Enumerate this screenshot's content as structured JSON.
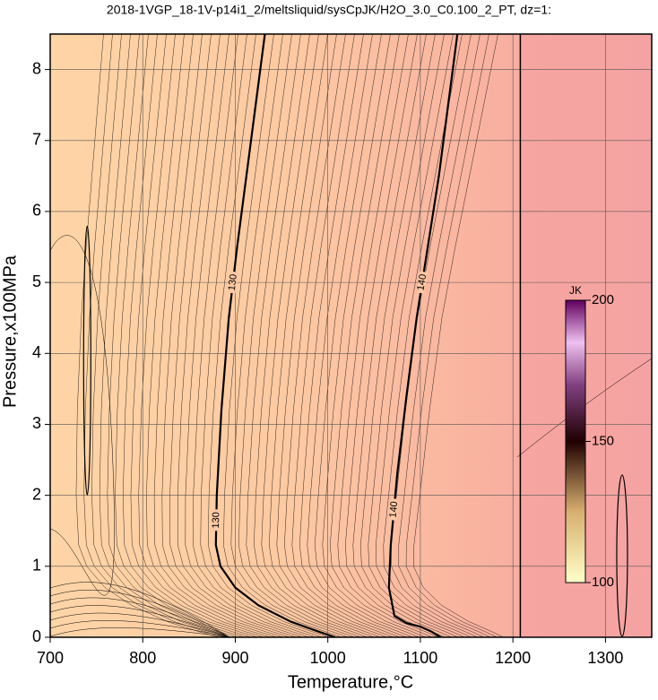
{
  "chart_data": {
    "type": "contour",
    "title": "2018-1VGP_18-1V-p14i1_2/meltsliquid/sysCpJK/H2O_3.0_C0.100_2_PT, dz=1:",
    "x_label": "Temperature,°C",
    "y_label": "Pressure,x100MPa",
    "xlim": [
      700,
      1350
    ],
    "ylim": [
      0,
      8.5
    ],
    "xticks": [
      700,
      800,
      900,
      1000,
      1100,
      1200,
      1300
    ],
    "yticks": [
      0,
      1,
      2,
      3,
      4,
      5,
      6,
      7,
      8
    ],
    "grid": true,
    "boundary_temperature": 1208,
    "contours": [
      {
        "level": 130,
        "color": "#000000",
        "x": [
          932,
          922,
          912,
          902,
          893,
          885,
          880,
          879,
          884,
          900,
          925,
          960,
          990,
          1008
        ],
        "y": [
          8.5,
          7.5,
          6.5,
          5.5,
          4.5,
          3.2,
          2.0,
          1.3,
          1.0,
          0.7,
          0.45,
          0.22,
          0.08,
          0
        ]
      },
      {
        "level": 140,
        "color": "#000000",
        "x": [
          1140,
          1130,
          1120,
          1108,
          1096,
          1085,
          1075,
          1068,
          1066,
          1072,
          1085,
          1100,
          1112,
          1122
        ],
        "y": [
          8.5,
          7.5,
          6.5,
          5.5,
          4.5,
          3.4,
          2.3,
          1.3,
          0.7,
          0.3,
          0.2,
          0.15,
          0.08,
          0
        ]
      }
    ],
    "colorbar": {
      "label": "JK",
      "lim": [
        100,
        200
      ],
      "ticks": [
        100,
        150,
        200
      ]
    }
  }
}
